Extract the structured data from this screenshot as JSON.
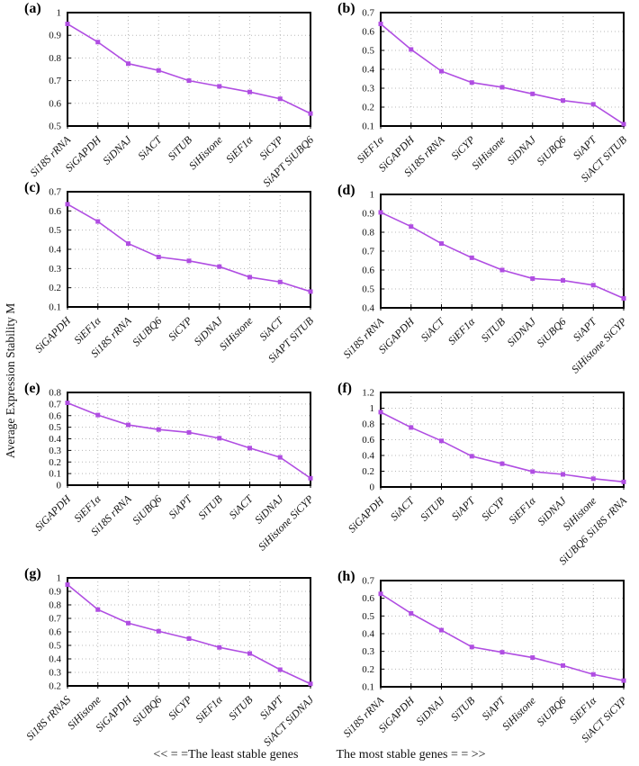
{
  "figure": {
    "y_axis_label": "Average Expression Stability M",
    "footer_left": "<< = =The least stable genes",
    "footer_right": "The most stable genes = = >>"
  },
  "colors": {
    "line": "#b04ee2",
    "marker": "#b04ee2",
    "grid": "#b8b8b8",
    "axis": "#000000",
    "text": "#111111"
  },
  "chart_data": [
    {
      "panel": "(a)",
      "type": "line",
      "categories": [
        "Si18S rRNA",
        "SiGAPDH",
        "SiDNAJ",
        "SiACT",
        "SiTUB",
        "SiHistone",
        "SiEF1α",
        "SiCYP",
        "SiAPT SiUBQ6"
      ],
      "values": [
        0.95,
        0.87,
        0.775,
        0.745,
        0.7,
        0.675,
        0.65,
        0.62,
        0.555
      ],
      "ylim": [
        0.5,
        1.0
      ],
      "yticks": [
        0.5,
        0.6,
        0.7,
        0.8,
        0.9,
        1.0
      ],
      "ytick_labels": [
        "0.5",
        "0.6",
        "0.7",
        "0.8",
        "0.9",
        "1"
      ],
      "grid": true
    },
    {
      "panel": "(b)",
      "type": "line",
      "categories": [
        "SiEF1α",
        "SiGAPDH",
        "Si18S rRNA",
        "SiCYP",
        "SiHistone",
        "SiDNAJ",
        "SiUBQ6",
        "SiAPT",
        "SiACT SiTUB"
      ],
      "values": [
        0.64,
        0.505,
        0.39,
        0.33,
        0.305,
        0.27,
        0.235,
        0.215,
        0.11
      ],
      "ylim": [
        0.1,
        0.7
      ],
      "yticks": [
        0.1,
        0.2,
        0.3,
        0.4,
        0.5,
        0.6,
        0.7
      ],
      "ytick_labels": [
        "0.1",
        "0.2",
        "0.3",
        "0.4",
        "0.5",
        "0.6",
        "0.7"
      ],
      "grid": true
    },
    {
      "panel": "(c)",
      "type": "line",
      "categories": [
        "SiGAPDH",
        "SiEF1α",
        "Si18S rRNA",
        "SiUBQ6",
        "SiCYP",
        "SiDNAJ",
        "SiHistone",
        "SiACT",
        "SiAPT SiTUB"
      ],
      "values": [
        0.635,
        0.545,
        0.43,
        0.36,
        0.34,
        0.31,
        0.255,
        0.23,
        0.18
      ],
      "ylim": [
        0.1,
        0.7
      ],
      "yticks": [
        0.1,
        0.2,
        0.3,
        0.4,
        0.5,
        0.6,
        0.7
      ],
      "ytick_labels": [
        "0.1",
        "0.2",
        "0.3",
        "0.4",
        "0.5",
        "0.6",
        "0.7"
      ],
      "grid": true
    },
    {
      "panel": "(d)",
      "type": "line",
      "categories": [
        "Si18S rRNA",
        "SiGAPDH",
        "SiACT",
        "SiEF1α",
        "SiTUB",
        "SiDNAJ",
        "SiUBQ6",
        "SiAPT",
        "SiHistone SiCYP"
      ],
      "values": [
        0.905,
        0.83,
        0.74,
        0.665,
        0.6,
        0.555,
        0.545,
        0.52,
        0.45
      ],
      "ylim": [
        0.4,
        1.0
      ],
      "yticks": [
        0.4,
        0.5,
        0.6,
        0.7,
        0.8,
        0.9,
        1.0
      ],
      "ytick_labels": [
        "0.4",
        "0.5",
        "0.6",
        "0.7",
        "0.8",
        "0.9",
        "1"
      ],
      "grid": true
    },
    {
      "panel": "(e)",
      "type": "line",
      "categories": [
        "SiGAPDH",
        "SiEF1α",
        "Si18S rRNA",
        "SiUBQ6",
        "SiAPT",
        "SiTUB",
        "SiACT",
        "SiDNAJ",
        "SiHistone SiCYP"
      ],
      "values": [
        0.71,
        0.605,
        0.52,
        0.48,
        0.455,
        0.405,
        0.32,
        0.24,
        0.06
      ],
      "ylim": [
        0.0,
        0.8
      ],
      "yticks": [
        0.0,
        0.1,
        0.2,
        0.3,
        0.4,
        0.5,
        0.6,
        0.7,
        0.8
      ],
      "ytick_labels": [
        "0",
        "0.1",
        "0.2",
        "0.3",
        "0.4",
        "0.5",
        "0.6",
        "0.7",
        "0.8"
      ],
      "grid": true
    },
    {
      "panel": "(f)",
      "type": "line",
      "categories": [
        "SiGAPDH",
        "SiACT",
        "SiTUB",
        "SiAPT",
        "SiCYP",
        "SiEF1α",
        "SiDNAJ",
        "SiHistone",
        "SiUBQ6 Si18S rRNA"
      ],
      "values": [
        0.95,
        0.755,
        0.585,
        0.39,
        0.295,
        0.195,
        0.16,
        0.105,
        0.065
      ],
      "ylim": [
        0.0,
        1.2
      ],
      "yticks": [
        0.0,
        0.2,
        0.4,
        0.6,
        0.8,
        1.0,
        1.2
      ],
      "ytick_labels": [
        "0",
        "0.2",
        "0.4",
        "0.6",
        "0.8",
        "1",
        "1.2"
      ],
      "grid": true
    },
    {
      "panel": "(g)",
      "type": "line",
      "categories": [
        "Si18S rRNAS",
        "SiHistone",
        "SiGAPDH",
        "SiUBQ6",
        "SiCYP",
        "SiEF1α",
        "SiTUB",
        "SiAPT",
        "SiACT SiDNAJ"
      ],
      "values": [
        0.95,
        0.765,
        0.665,
        0.605,
        0.55,
        0.485,
        0.44,
        0.32,
        0.215
      ],
      "ylim": [
        0.2,
        1.0
      ],
      "yticks": [
        0.2,
        0.3,
        0.4,
        0.5,
        0.6,
        0.7,
        0.8,
        0.9,
        1.0
      ],
      "ytick_labels": [
        "0.2",
        "0.3",
        "0.4",
        "0.5",
        "0.6",
        "0.7",
        "0.8",
        "0.9",
        "1"
      ],
      "grid": true
    },
    {
      "panel": "(h)",
      "type": "line",
      "categories": [
        "Si18S rRNA",
        "SiGAPDH",
        "SiDNAJ",
        "SiTUB",
        "SiAPT",
        "SiHistone",
        "SiUBQ6",
        "SiEF1α",
        "SiACT SiCYP"
      ],
      "values": [
        0.625,
        0.515,
        0.42,
        0.325,
        0.295,
        0.265,
        0.22,
        0.17,
        0.135
      ],
      "ylim": [
        0.1,
        0.7
      ],
      "yticks": [
        0.1,
        0.2,
        0.3,
        0.4,
        0.5,
        0.6,
        0.7
      ],
      "ytick_labels": [
        "0.1",
        "0.2",
        "0.3",
        "0.4",
        "0.5",
        "0.6",
        "0.7"
      ],
      "grid": true
    }
  ]
}
